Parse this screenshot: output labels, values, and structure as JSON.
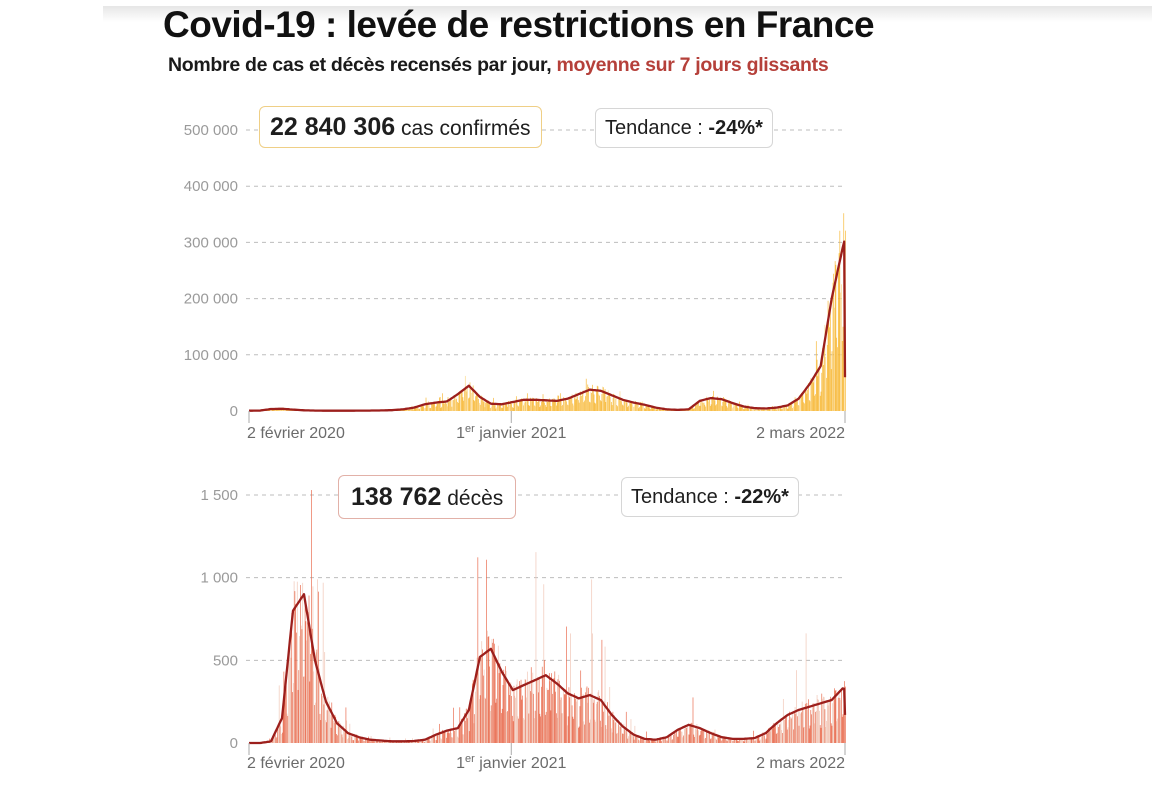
{
  "header": {
    "title": "Covid-19 : levée de restrictions en France",
    "subtitle_main": "Nombre de cas et décès recensés par jour, ",
    "subtitle_accent": "moyenne sur 7 jours glissants"
  },
  "colors": {
    "cases_bar": "#f7b733",
    "cases_bar_light": "#fbd88a",
    "deaths_bar": "#e8684a",
    "deaths_bar_light": "#f0c4b4",
    "average_line": "#9c1f1c",
    "accent_text": "#b5403a",
    "grid": "#bdbdbd"
  },
  "chart_data": [
    {
      "type": "bar",
      "id": "cases",
      "title": "Cas confirmés par jour",
      "total_label_value": "22 840 306",
      "total_label_text": " cas confirmés",
      "trend_label": "Tendance : ",
      "trend_value": "-24%*",
      "xlabel": "",
      "ylabel": "",
      "ylim": [
        0,
        500000
      ],
      "yticks": [
        0,
        100000,
        200000,
        300000,
        400000,
        500000
      ],
      "ytick_labels": [
        "0",
        "100 000",
        "200 000",
        "300 000",
        "400 000",
        "500 000"
      ],
      "x_range_days": [
        0,
        759
      ],
      "xticks": [
        {
          "day": 0,
          "label_main": "2 février 2020",
          "label_sup": ""
        },
        {
          "day": 334,
          "label_main": " janvier 2021",
          "label_prefix": "1",
          "label_sup": "er"
        },
        {
          "day": 759,
          "label_main": "2 mars 2022",
          "label_sup": ""
        }
      ],
      "grid": true,
      "series": [
        {
          "name": "moyenne sur 7 jours glissants",
          "step_days": 14,
          "values": [
            500,
            800,
            3500,
            4000,
            2500,
            1200,
            800,
            500,
            500,
            500,
            700,
            800,
            1000,
            1500,
            3000,
            6000,
            12000,
            15000,
            17000,
            30000,
            45000,
            25000,
            13000,
            12000,
            16000,
            20000,
            20000,
            19000,
            18000,
            22000,
            30000,
            38000,
            36000,
            28000,
            20000,
            15000,
            11000,
            6000,
            3000,
            2000,
            3000,
            18000,
            23000,
            21000,
            14000,
            8000,
            5000,
            4500,
            6000,
            10000,
            22000,
            48000,
            80000,
            200000,
            290000,
            370000,
            240000,
            130000,
            65000
          ],
          "end_value": 60000
        }
      ]
    },
    {
      "type": "bar",
      "id": "deaths",
      "title": "Décès par jour",
      "total_label_value": "138 762",
      "total_label_text": " décès",
      "trend_label": "Tendance : ",
      "trend_value": "-22%*",
      "xlabel": "",
      "ylabel": "",
      "ylim": [
        0,
        1500
      ],
      "yticks": [
        0,
        500,
        1000,
        1500
      ],
      "ytick_labels": [
        "0",
        "500",
        "1 000",
        "1 500"
      ],
      "x_range_days": [
        0,
        759
      ],
      "xticks": [
        {
          "day": 0,
          "label_main": "2 février 2020",
          "label_sup": ""
        },
        {
          "day": 334,
          "label_main": " janvier 2021",
          "label_prefix": "1",
          "label_sup": "er"
        },
        {
          "day": 759,
          "label_main": "2 mars 2022",
          "label_sup": ""
        }
      ],
      "grid": true,
      "series": [
        {
          "name": "moyenne sur 7 jours glissants",
          "step_days": 14,
          "values": [
            0,
            0,
            10,
            150,
            800,
            900,
            500,
            250,
            120,
            60,
            35,
            20,
            15,
            10,
            10,
            12,
            20,
            50,
            75,
            90,
            200,
            520,
            570,
            430,
            320,
            350,
            380,
            410,
            360,
            300,
            270,
            290,
            260,
            170,
            100,
            50,
            25,
            20,
            35,
            80,
            110,
            90,
            60,
            35,
            25,
            25,
            30,
            60,
            120,
            170,
            200,
            220,
            240,
            260,
            330,
            320,
            260,
            200,
            170
          ],
          "end_value": 170
        }
      ]
    }
  ]
}
